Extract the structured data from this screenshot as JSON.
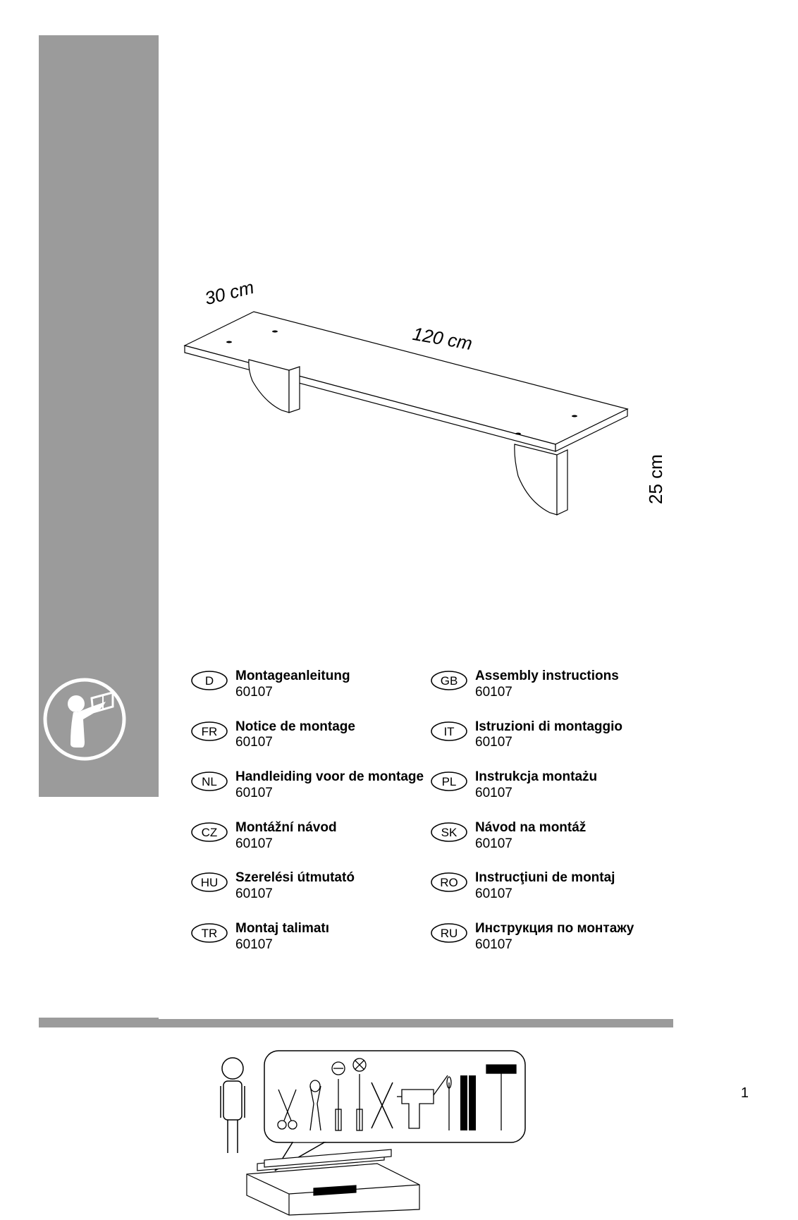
{
  "dimensions": {
    "depth": "30 cm",
    "width": "120 cm",
    "height": "25 cm"
  },
  "product_number": "60107",
  "languages": [
    {
      "code": "D",
      "title": "Montageanleitung"
    },
    {
      "code": "GB",
      "title": "Assembly instructions"
    },
    {
      "code": "FR",
      "title": "Notice de montage"
    },
    {
      "code": "IT",
      "title": "Istruzioni di montaggio"
    },
    {
      "code": "NL",
      "title": "Handleiding voor de montage"
    },
    {
      "code": "PL",
      "title": "Instrukcja montażu"
    },
    {
      "code": "CZ",
      "title": "Montážní návod"
    },
    {
      "code": "SK",
      "title": "Návod na montáž"
    },
    {
      "code": "HU",
      "title": "Szerelési útmutató"
    },
    {
      "code": "RO",
      "title": "Instrucţiuni de montaj"
    },
    {
      "code": "TR",
      "title": "Montaj talimatı"
    },
    {
      "code": "RU",
      "title": "Инструкция по монтажу"
    }
  ],
  "page_number": "1",
  "colors": {
    "sidebar": "#9b9b9b",
    "stroke": "#000000",
    "background": "#ffffff"
  }
}
